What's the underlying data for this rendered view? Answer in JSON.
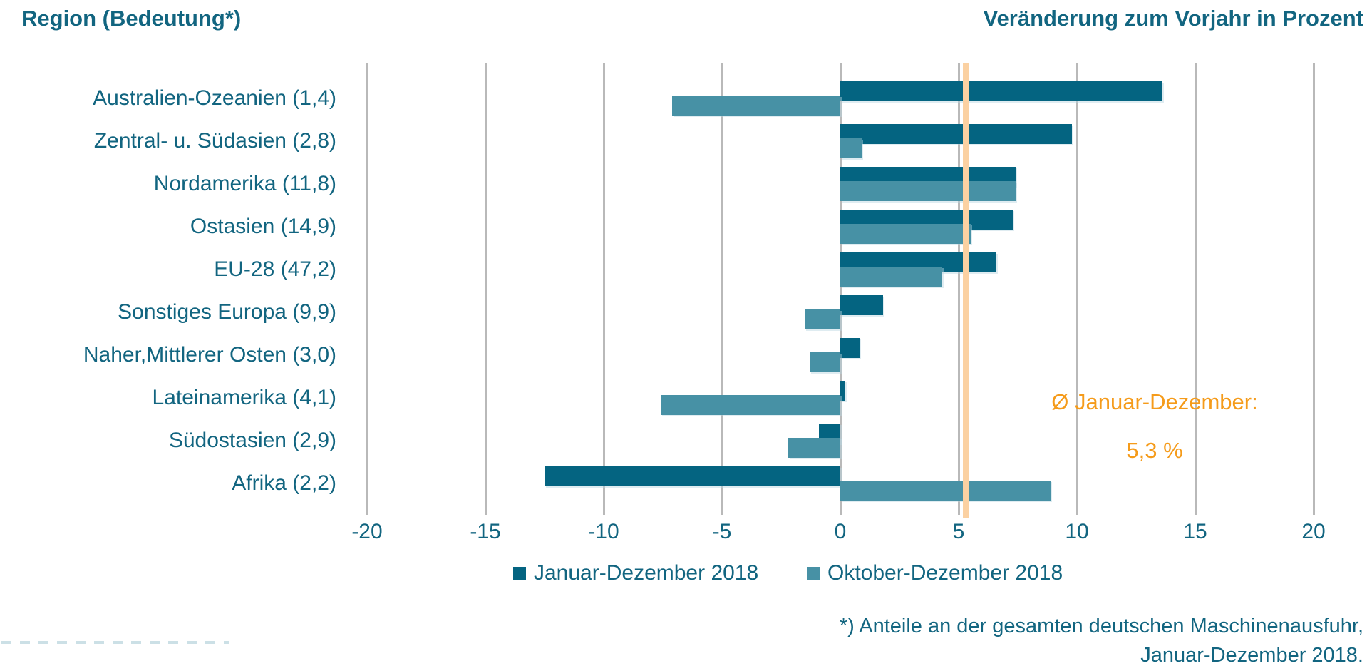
{
  "header": {
    "left_title": "Region (Bedeutung*)",
    "right_title": "Veränderung zum Vorjahr in Prozent"
  },
  "chart_data": {
    "type": "bar",
    "orientation": "horizontal",
    "title": "Veränderung zum Vorjahr in Prozent",
    "categories": [
      "Australien-Ozeanien (1,4)",
      "Zentral- u. Südasien (2,8)",
      "Nordamerika (11,8)",
      "Ostasien (14,9)",
      "EU-28 (47,2)",
      "Sonstiges Europa (9,9)",
      "Naher,Mittlerer Osten (3,0)",
      "Lateinamerika (4,1)",
      "Südostasien (2,9)",
      "Afrika (2,2)"
    ],
    "series": [
      {
        "name": "Januar-Dezember 2018",
        "color": "#046481",
        "values": [
          13.6,
          9.8,
          7.4,
          7.3,
          6.6,
          1.8,
          0.8,
          0.2,
          -0.9,
          -12.5
        ]
      },
      {
        "name": "Oktober-Dezember 2018",
        "color": "#4791a5",
        "values": [
          -7.1,
          0.9,
          7.4,
          5.5,
          4.3,
          -1.5,
          -1.3,
          -7.6,
          -2.2,
          8.9
        ]
      }
    ],
    "xlim": [
      -20,
      20
    ],
    "x_ticks": [
      -20,
      -15,
      -10,
      -5,
      0,
      5,
      10,
      15,
      20
    ],
    "grid": "vertical-gridlines-on",
    "legend_position": "bottom",
    "average_line": {
      "value": 5.3,
      "color": "#fbd1a2",
      "label_line1": "Ø Januar-Dezember:",
      "label_line2": "5,3 %",
      "label_color": "#f59b1a"
    }
  },
  "footnote": {
    "line1": "*) Anteile an der gesamten deutschen Maschinenausfuhr,",
    "line2": "Januar-Dezember 2018."
  },
  "colors": {
    "text_teal": "#126580",
    "gridline": "#b9b9b9",
    "background": "#ffffff"
  }
}
